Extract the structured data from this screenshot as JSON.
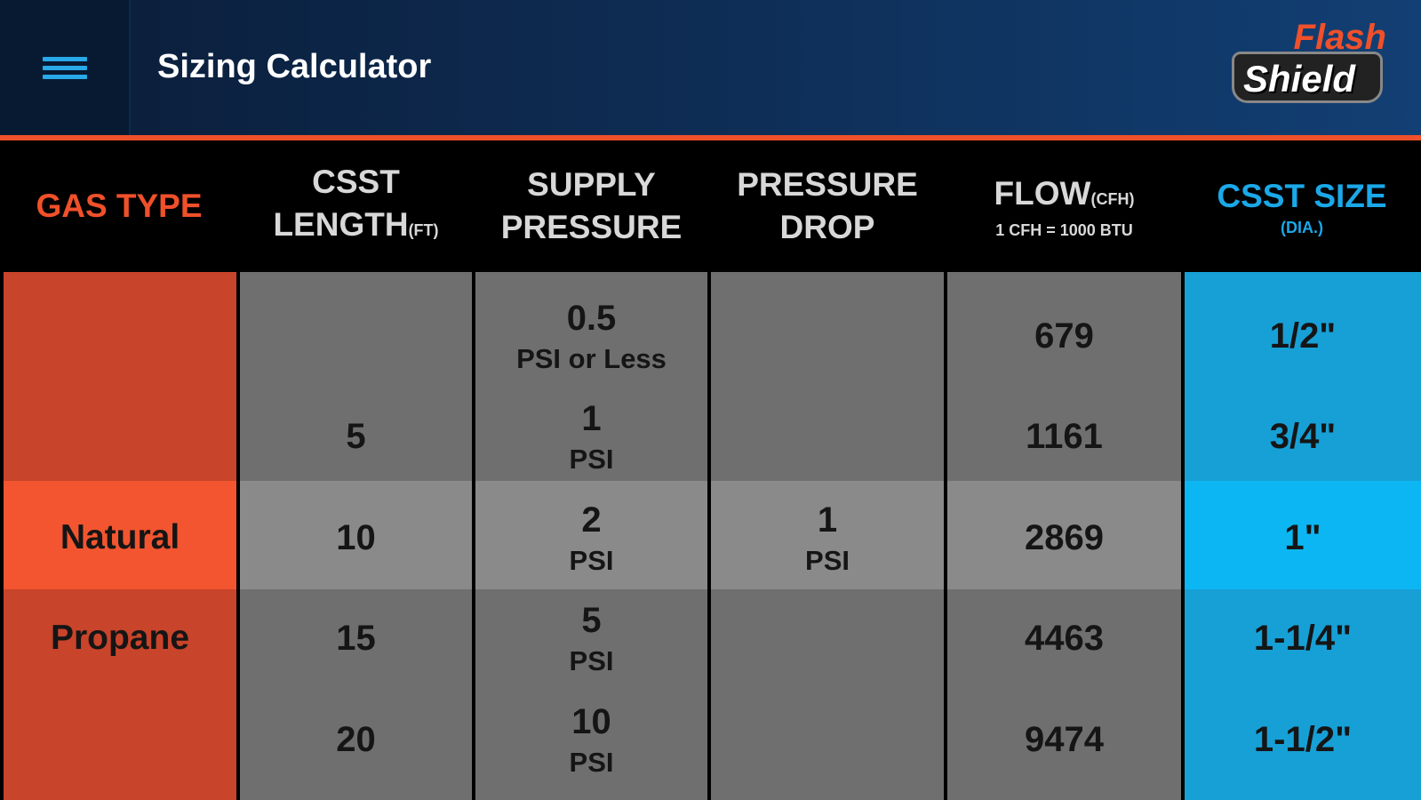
{
  "appbar": {
    "title": "Sizing Calculator",
    "menu_icon": "hamburger-menu-icon",
    "logo": {
      "line1": "Flash",
      "line2": "Shield"
    }
  },
  "colors": {
    "accent_orange": "#f0502a",
    "gas_dark": "#c8442b",
    "gas_selected": "#f2552f",
    "gray_dark": "#6f6f6f",
    "gray_selected": "#8a8a8a",
    "blue_dark": "#17a0d6",
    "blue_selected": "#0cb6f2"
  },
  "headers": {
    "gas_type": "GAS TYPE",
    "csst_length": {
      "line1": "CSST",
      "line2": "LENGTH",
      "unit": "(FT)"
    },
    "supply_pressure": {
      "line1": "SUPPLY",
      "line2": "PRESSURE"
    },
    "pressure_drop": {
      "line1": "PRESSURE",
      "line2": "DROP"
    },
    "flow": {
      "line1": "FLOW",
      "unit": "(CFH)",
      "note": "1 CFH = 1000 BTU"
    },
    "csst_size": {
      "line1": "CSST SIZE",
      "note": "(DIA.)"
    }
  },
  "gas_type": [
    "",
    "",
    "Natural",
    "Propane",
    ""
  ],
  "csst_length": [
    "",
    "5",
    "10",
    "15",
    "20"
  ],
  "supply_pressure": [
    {
      "v": "0.5",
      "u": "PSI or Less"
    },
    {
      "v": "1",
      "u": "PSI"
    },
    {
      "v": "2",
      "u": "PSI"
    },
    {
      "v": "5",
      "u": "PSI"
    },
    {
      "v": "10",
      "u": "PSI"
    }
  ],
  "pressure_drop": [
    {
      "v": "",
      "u": ""
    },
    {
      "v": "",
      "u": ""
    },
    {
      "v": "1",
      "u": "PSI"
    },
    {
      "v": "",
      "u": ""
    },
    {
      "v": "",
      "u": ""
    }
  ],
  "flow": [
    "679",
    "1161",
    "2869",
    "4463",
    "9474"
  ],
  "csst_size": [
    "1/2\"",
    "3/4\"",
    "1\"",
    "1-1/4\"",
    "1-1/2\""
  ],
  "selected_row": 2
}
